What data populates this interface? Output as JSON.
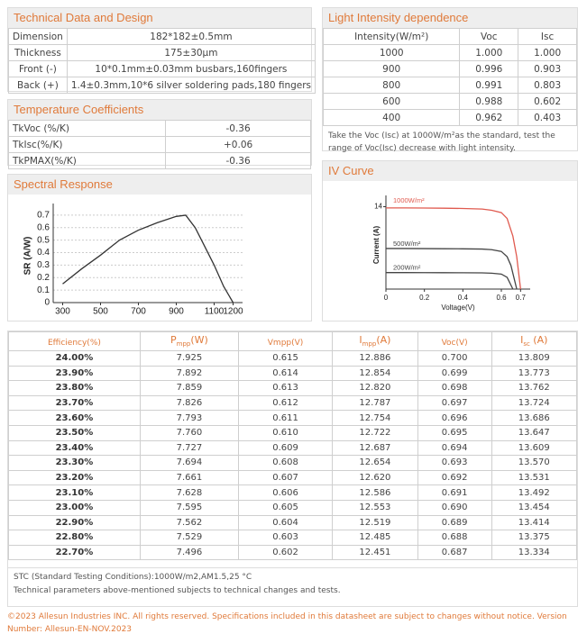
{
  "technical_data": {
    "title": "Technical Data and Design",
    "rows": [
      [
        "Dimension",
        "182*182±0.5mm"
      ],
      [
        "Thickness",
        "175±30μm"
      ],
      [
        "Front (-)",
        "10*0.1mm±0.03mm busbars,160fingers"
      ],
      [
        "Back (+)",
        "1.4±0.3mm,10*6 silver soldering pads,180 fingers"
      ]
    ]
  },
  "temperature_coefficients": {
    "title": "Temperature Coefficients",
    "rows": [
      [
        "TkVoc (%/K)",
        "-0.36"
      ],
      [
        "TkIsc(%/K)",
        "+0.06"
      ],
      [
        "TkPMAX(%/K)",
        "-0.36"
      ]
    ]
  },
  "spectral_response": {
    "title": "Spectral Response",
    "chart_data": {
      "type": "line",
      "y_label": "SR (A/W)",
      "color": "#333333",
      "x": [
        300,
        400,
        500,
        600,
        700,
        800,
        900,
        950,
        1000,
        1050,
        1100,
        1150,
        1200
      ],
      "values": [
        0.15,
        0.27,
        0.38,
        0.5,
        0.58,
        0.64,
        0.69,
        0.7,
        0.6,
        0.45,
        0.3,
        0.13,
        0
      ],
      "xlim": [
        250,
        1250
      ],
      "ylim": [
        0,
        0.75
      ],
      "xticks": [
        300,
        500,
        700,
        900,
        1100,
        1200
      ],
      "yticks": [
        0,
        0.1,
        0.2,
        0.3,
        0.4,
        0.5,
        0.6,
        0.7
      ],
      "grid": true
    }
  },
  "light_intensity": {
    "title": "Light Intensity dependence",
    "columns": [
      "Intensity(W/m²)",
      "Voc",
      "Isc"
    ],
    "rows": [
      [
        "1000",
        "1.000",
        "1.000"
      ],
      [
        "900",
        "0.996",
        "0.903"
      ],
      [
        "800",
        "0.991",
        "0.803"
      ],
      [
        "600",
        "0.988",
        "0.602"
      ],
      [
        "400",
        "0.962",
        "0.403"
      ]
    ],
    "note": "Take the Voc (Isc) at 1000W/m²as the standard, test the range of Voc(Isc) decrease with light intensity."
  },
  "iv_curve": {
    "title": "IV Curve",
    "chart_data": {
      "type": "line",
      "x_label": "Voltage(V)",
      "y_label": "Current (A)",
      "xlim": [
        0,
        0.75
      ],
      "ylim": [
        0,
        15
      ],
      "xticks": [
        0,
        0.2,
        0.4,
        0.6,
        0.7
      ],
      "yticks": [
        14
      ],
      "series": [
        {
          "name": "1000W/m²",
          "color": "#e05a4f",
          "x": [
            0,
            0.1,
            0.2,
            0.3,
            0.4,
            0.5,
            0.55,
            0.6,
            0.63,
            0.66,
            0.68,
            0.7
          ],
          "values": [
            13.8,
            13.8,
            13.78,
            13.75,
            13.7,
            13.6,
            13.4,
            13.0,
            12.0,
            9.0,
            5.5,
            0
          ]
        },
        {
          "name": "500W/m²",
          "color": "#444444",
          "x": [
            0,
            0.1,
            0.2,
            0.3,
            0.4,
            0.5,
            0.55,
            0.6,
            0.63,
            0.65,
            0.68
          ],
          "values": [
            6.9,
            6.9,
            6.88,
            6.86,
            6.84,
            6.8,
            6.7,
            6.4,
            5.5,
            4.0,
            0
          ]
        },
        {
          "name": "200W/m²",
          "color": "#444444",
          "x": [
            0,
            0.1,
            0.2,
            0.3,
            0.4,
            0.5,
            0.55,
            0.6,
            0.63,
            0.66
          ],
          "values": [
            2.8,
            2.8,
            2.79,
            2.78,
            2.77,
            2.75,
            2.7,
            2.55,
            2.0,
            0
          ]
        }
      ]
    }
  },
  "efficiency_table": {
    "columns": [
      {
        "main": "Efficiency(%)"
      },
      {
        "main": "P",
        "sub": "mpp",
        "unit": "(W)"
      },
      {
        "main": "Vmpp(V)"
      },
      {
        "main": "I",
        "sub": "mpp",
        "unit": "(A)"
      },
      {
        "main": "Voc(V)"
      },
      {
        "main": "I",
        "sub": "sc",
        "unit": " (A)"
      }
    ],
    "rows": [
      [
        "24.00%",
        "7.925",
        "0.615",
        "12.886",
        "0.700",
        "13.809"
      ],
      [
        "23.90%",
        "7.892",
        "0.614",
        "12.854",
        "0.699",
        "13.773"
      ],
      [
        "23.80%",
        "7.859",
        "0.613",
        "12.820",
        "0.698",
        "13.762"
      ],
      [
        "23.70%",
        "7.826",
        "0.612",
        "12.787",
        "0.697",
        "13.724"
      ],
      [
        "23.60%",
        "7.793",
        "0.611",
        "12.754",
        "0.696",
        "13.686"
      ],
      [
        "23.50%",
        "7.760",
        "0.610",
        "12.722",
        "0.695",
        "13.647"
      ],
      [
        "23.40%",
        "7.727",
        "0.609",
        "12.687",
        "0.694",
        "13.609"
      ],
      [
        "23.30%",
        "7.694",
        "0.608",
        "12.654",
        "0.693",
        "13.570"
      ],
      [
        "23.20%",
        "7.661",
        "0.607",
        "12.620",
        "0.692",
        "13.531"
      ],
      [
        "23.10%",
        "7.628",
        "0.606",
        "12.586",
        "0.691",
        "13.492"
      ],
      [
        "23.00%",
        "7.595",
        "0.605",
        "12.553",
        "0.690",
        "13.454"
      ],
      [
        "22.90%",
        "7.562",
        "0.604",
        "12.519",
        "0.689",
        "13.414"
      ],
      [
        "22.80%",
        "7.529",
        "0.603",
        "12.485",
        "0.688",
        "13.375"
      ],
      [
        "22.70%",
        "7.496",
        "0.602",
        "12.451",
        "0.687",
        "13.334"
      ]
    ]
  },
  "notes": [
    "STC (Standard Testing Conditions):1000W/m2,AM1.5,25 °C",
    "Technical parameters above-mentioned subjects to technical changes and tests."
  ],
  "copyright": "©2023 Allesun Industries INC. All rights reserved. Specifications included in this datasheet are subject to changes without notice. Version Number: Allesun-EN-NOV.2023"
}
